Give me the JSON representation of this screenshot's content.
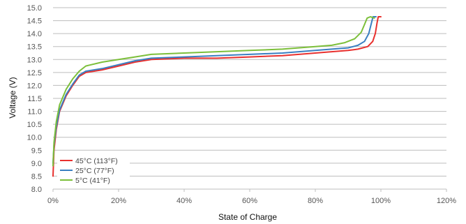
{
  "chart_data": {
    "type": "line",
    "title": "",
    "xlabel": "State of Charge",
    "ylabel": "Voltage (V)",
    "xlim": [
      0,
      120
    ],
    "ylim": [
      8.0,
      15.0
    ],
    "x_ticks": [
      "0%",
      "20%",
      "40%",
      "60%",
      "80%",
      "100%",
      "120%"
    ],
    "y_ticks": [
      "8.0",
      "8.5",
      "9.0",
      "9.5",
      "10.0",
      "10.5",
      "11.0",
      "11.5",
      "12.0",
      "12.5",
      "13.0",
      "13.5",
      "14.0",
      "14.5",
      "15.0"
    ],
    "grid": true,
    "legend_position": "bottom-left",
    "series": [
      {
        "name": "45°C  (113°F)",
        "color": "#e8302e",
        "points": [
          [
            0,
            8.5
          ],
          [
            0.3,
            9.5
          ],
          [
            1,
            10.3
          ],
          [
            2,
            11.0
          ],
          [
            4,
            11.6
          ],
          [
            6,
            12.0
          ],
          [
            8,
            12.35
          ],
          [
            10,
            12.5
          ],
          [
            15,
            12.6
          ],
          [
            20,
            12.75
          ],
          [
            25,
            12.9
          ],
          [
            30,
            13.0
          ],
          [
            40,
            13.05
          ],
          [
            50,
            13.05
          ],
          [
            60,
            13.1
          ],
          [
            70,
            13.15
          ],
          [
            80,
            13.25
          ],
          [
            85,
            13.3
          ],
          [
            90,
            13.35
          ],
          [
            93,
            13.4
          ],
          [
            96,
            13.5
          ],
          [
            97.5,
            13.7
          ],
          [
            98.3,
            14.0
          ],
          [
            98.8,
            14.4
          ],
          [
            99.2,
            14.65
          ],
          [
            100,
            14.65
          ]
        ]
      },
      {
        "name": "25°C  (77°F)",
        "color": "#3a7fc1",
        "points": [
          [
            0,
            9.0
          ],
          [
            0.3,
            9.7
          ],
          [
            1,
            10.4
          ],
          [
            2,
            11.05
          ],
          [
            4,
            11.65
          ],
          [
            6,
            12.05
          ],
          [
            8,
            12.4
          ],
          [
            10,
            12.55
          ],
          [
            15,
            12.65
          ],
          [
            20,
            12.8
          ],
          [
            25,
            12.95
          ],
          [
            30,
            13.05
          ],
          [
            40,
            13.1
          ],
          [
            50,
            13.15
          ],
          [
            60,
            13.2
          ],
          [
            70,
            13.25
          ],
          [
            80,
            13.35
          ],
          [
            85,
            13.4
          ],
          [
            90,
            13.45
          ],
          [
            93,
            13.55
          ],
          [
            95,
            13.7
          ],
          [
            96.3,
            14.0
          ],
          [
            97,
            14.35
          ],
          [
            97.6,
            14.65
          ],
          [
            98.5,
            14.65
          ]
        ]
      },
      {
        "name": "5°C  (41°F)",
        "color": "#7cbf3a",
        "points": [
          [
            0,
            8.9
          ],
          [
            0.3,
            9.8
          ],
          [
            1,
            10.6
          ],
          [
            2,
            11.25
          ],
          [
            4,
            11.85
          ],
          [
            6,
            12.25
          ],
          [
            8,
            12.55
          ],
          [
            10,
            12.75
          ],
          [
            15,
            12.9
          ],
          [
            20,
            13.0
          ],
          [
            25,
            13.1
          ],
          [
            30,
            13.2
          ],
          [
            40,
            13.25
          ],
          [
            50,
            13.3
          ],
          [
            60,
            13.35
          ],
          [
            70,
            13.4
          ],
          [
            80,
            13.5
          ],
          [
            85,
            13.55
          ],
          [
            89,
            13.65
          ],
          [
            92,
            13.8
          ],
          [
            94,
            14.05
          ],
          [
            95,
            14.35
          ],
          [
            95.8,
            14.6
          ],
          [
            96.8,
            14.65
          ],
          [
            98,
            14.6
          ]
        ]
      }
    ]
  }
}
